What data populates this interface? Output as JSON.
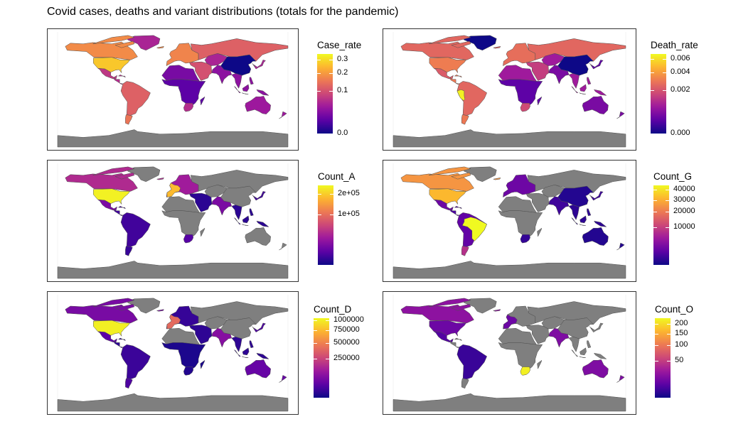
{
  "figure": {
    "title": "Covid cases, deaths and variant distributions (totals for the pandemic)"
  },
  "palette": [
    "#0d0887",
    "#5c01a6",
    "#9c179e",
    "#cc4778",
    "#ed7953",
    "#fdb42f",
    "#f0f921"
  ],
  "missing_color": "#7f7f7f",
  "chart_data": [
    {
      "type": "choropleth-map",
      "legend_title": "Case_rate",
      "scale": "sqrt",
      "limits": [
        0,
        0.35
      ],
      "breaks": [
        0.0,
        0.1,
        0.2,
        0.3
      ],
      "break_labels": [
        "0.0",
        "0.1",
        "0.2",
        "0.3"
      ],
      "regions": {
        "north_america": 0.18,
        "usa": 0.27,
        "mexico": 0.07,
        "central_america": 0.06,
        "south_america": 0.12,
        "southern_cone": 0.15,
        "europe": 0.17,
        "russia": 0.12,
        "central_asia": 0.05,
        "middle_east": 0.1,
        "africa_north": 0.02,
        "africa_sub": 0.01,
        "south_africa": 0.06,
        "south_asia": 0.03,
        "china": 0.0,
        "east_asia": 0.05,
        "se_asia": 0.03,
        "australia": 0.04,
        "greenland": 0.05
      }
    },
    {
      "type": "choropleth-map",
      "legend_title": "Death_rate",
      "scale": "sqrt",
      "limits": [
        0,
        0.0068
      ],
      "breaks": [
        0.0,
        0.002,
        0.004,
        0.006
      ],
      "break_labels": [
        "0.000",
        "0.002",
        "0.004",
        "0.006"
      ],
      "regions": {
        "north_america": 0.0025,
        "usa": 0.0031,
        "mexico": 0.0022,
        "central_america": 0.003,
        "south_america": 0.0025,
        "peru": 0.0065,
        "southern_cone": 0.003,
        "europe": 0.0027,
        "russia": 0.0025,
        "central_asia": 0.0008,
        "middle_east": 0.0015,
        "africa_north": 0.0008,
        "africa_sub": 0.0002,
        "south_africa": 0.0018,
        "south_asia": 0.0004,
        "china": 0.0,
        "east_asia": 0.0002,
        "se_asia": 0.0008,
        "australia": 0.0004,
        "greenland": 0.0
      }
    },
    {
      "type": "choropleth-map",
      "legend_title": "Count_A",
      "scale": "sqrt",
      "limits": [
        0,
        250000
      ],
      "breaks": [
        100000,
        200000
      ],
      "break_labels": [
        "1e+05",
        "2e+05"
      ],
      "regions": {
        "north_america": 40000,
        "usa": 240000,
        "mexico": 15000,
        "central_america": 3000,
        "south_america": 3000,
        "southern_cone": 2000,
        "europe": 30000,
        "europe_west": 180000,
        "russia": null,
        "central_asia": null,
        "middle_east": 1000,
        "africa_north": null,
        "africa_sub": null,
        "south_africa": 6000,
        "south_asia": 15000,
        "china": null,
        "east_asia": 3000,
        "se_asia": 1000,
        "australia": null,
        "greenland": null
      }
    },
    {
      "type": "choropleth-map",
      "legend_title": "Count_G",
      "scale": "sqrt",
      "limits": [
        0,
        45000
      ],
      "breaks": [
        10000,
        20000,
        30000,
        40000
      ],
      "break_labels": [
        "10000",
        "20000",
        "30000",
        "40000"
      ],
      "regions": {
        "north_america": 25000,
        "usa": 32000,
        "mexico": 2000,
        "central_america": 800,
        "south_america": 1500,
        "brazil": 45000,
        "southern_cone": 8000,
        "europe": 2000,
        "russia": null,
        "central_asia": null,
        "middle_east": null,
        "africa_north": null,
        "africa_sub": null,
        "south_africa": 300,
        "south_asia": 500,
        "china": 100,
        "east_asia": 500,
        "se_asia": 200,
        "australia": 100,
        "greenland": null
      }
    },
    {
      "type": "choropleth-map",
      "legend_title": "Count_D",
      "scale": "sqrt",
      "limits": [
        0,
        1050000
      ],
      "breaks": [
        250000,
        500000,
        750000,
        1000000
      ],
      "break_labels": [
        "250000",
        "500000",
        "750000",
        "1000000"
      ],
      "regions": {
        "north_america": 60000,
        "usa": 1000000,
        "mexico": 30000,
        "central_america": 5000,
        "south_america": 10000,
        "southern_cone": 20000,
        "europe": 8000,
        "europe_west": 400000,
        "russia": null,
        "central_asia": null,
        "middle_east": 5000,
        "africa_north": null,
        "africa_sub": 1000,
        "south_africa": 2000,
        "south_asia": 80000,
        "china": null,
        "east_asia": 20000,
        "se_asia": 5000,
        "australia": 40000,
        "greenland": null
      }
    },
    {
      "type": "choropleth-map",
      "legend_title": "Count_O",
      "scale": "sqrt",
      "limits": [
        0,
        230
      ],
      "breaks": [
        50,
        100,
        150,
        200
      ],
      "break_labels": [
        "50",
        "100",
        "150",
        "200"
      ],
      "regions": {
        "north_america": 20,
        "usa": 10,
        "mexico": 5,
        "central_america": null,
        "south_america": 2,
        "southern_cone": null,
        "europe": null,
        "europe_west": 10,
        "russia": null,
        "central_asia": null,
        "middle_east": null,
        "africa_north": null,
        "africa_sub": null,
        "south_africa": 220,
        "south_asia": 15,
        "china": null,
        "east_asia": null,
        "se_asia": null,
        "australia": 15,
        "greenland": null
      }
    }
  ]
}
